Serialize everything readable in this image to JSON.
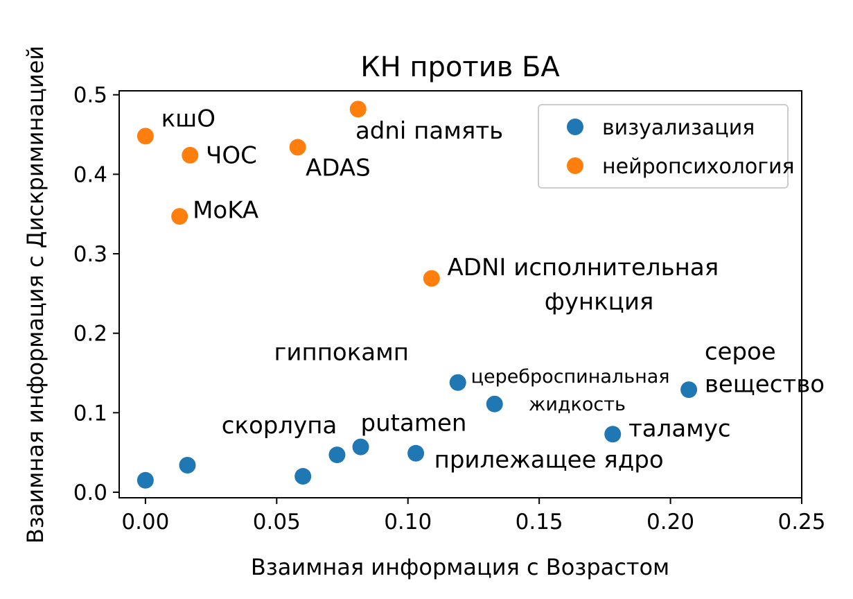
{
  "chart_data": {
    "type": "scatter",
    "title": "КН против БА",
    "xlabel": "Взаимная информация с Возрастом",
    "ylabel": "Взаимная информация с Дискриминацией",
    "xlim": [
      -0.01,
      0.25
    ],
    "ylim": [
      -0.007,
      0.505
    ],
    "xticks": [
      "0.00",
      "0.05",
      "0.10",
      "0.15",
      "0.20",
      "0.25"
    ],
    "yticks": [
      "0.0",
      "0.1",
      "0.2",
      "0.3",
      "0.4",
      "0.5"
    ],
    "grid": false,
    "legend_position": "top-right",
    "series": [
      {
        "name": "визуализация",
        "color": "#1f77b4",
        "points": [
          {
            "x": 0.0,
            "y": 0.015
          },
          {
            "x": 0.016,
            "y": 0.034
          },
          {
            "x": 0.06,
            "y": 0.02
          },
          {
            "x": 0.073,
            "y": 0.047
          },
          {
            "x": 0.082,
            "y": 0.057
          },
          {
            "x": 0.103,
            "y": 0.049
          },
          {
            "x": 0.119,
            "y": 0.138
          },
          {
            "x": 0.133,
            "y": 0.111
          },
          {
            "x": 0.178,
            "y": 0.073
          },
          {
            "x": 0.207,
            "y": 0.129
          }
        ]
      },
      {
        "name": "нейропсихология",
        "color": "#ff7f0e",
        "points": [
          {
            "x": 0.0,
            "y": 0.448
          },
          {
            "x": 0.017,
            "y": 0.424
          },
          {
            "x": 0.058,
            "y": 0.434
          },
          {
            "x": 0.081,
            "y": 0.482
          },
          {
            "x": 0.013,
            "y": 0.347
          },
          {
            "x": 0.109,
            "y": 0.269
          }
        ]
      }
    ],
    "annotations": [
      {
        "text": "кшО",
        "x": 0.006,
        "y": 0.46,
        "size": "large"
      },
      {
        "text": "ЧОС",
        "x": 0.023,
        "y": 0.414,
        "size": "large"
      },
      {
        "text": "ADAS",
        "x": 0.061,
        "y": 0.398,
        "size": "large"
      },
      {
        "text": "adni память",
        "x": 0.08,
        "y": 0.445,
        "size": "large"
      },
      {
        "text": "MoKA",
        "x": 0.018,
        "y": 0.345,
        "size": "large"
      },
      {
        "text": "ADNI исполнительная",
        "x": 0.115,
        "y": 0.273,
        "size": "large"
      },
      {
        "text": "функция",
        "x": 0.152,
        "y": 0.23,
        "size": "large"
      },
      {
        "text": "гиппокамп",
        "x": 0.049,
        "y": 0.166,
        "size": "large"
      },
      {
        "text": "цереброспинальная",
        "x": 0.124,
        "y": 0.138,
        "size": "small"
      },
      {
        "text": "жидкость",
        "x": 0.146,
        "y": 0.103,
        "size": "small"
      },
      {
        "text": "серое",
        "x": 0.213,
        "y": 0.167,
        "size": "large"
      },
      {
        "text": "вещество",
        "x": 0.213,
        "y": 0.126,
        "size": "large"
      },
      {
        "text": "скорлупа",
        "x": 0.029,
        "y": 0.074,
        "size": "large"
      },
      {
        "text": "putamen",
        "x": 0.082,
        "y": 0.077,
        "size": "large"
      },
      {
        "text": "таламус",
        "x": 0.184,
        "y": 0.07,
        "size": "large"
      },
      {
        "text": "прилежащее ядро",
        "x": 0.11,
        "y": 0.031,
        "size": "large"
      }
    ]
  }
}
